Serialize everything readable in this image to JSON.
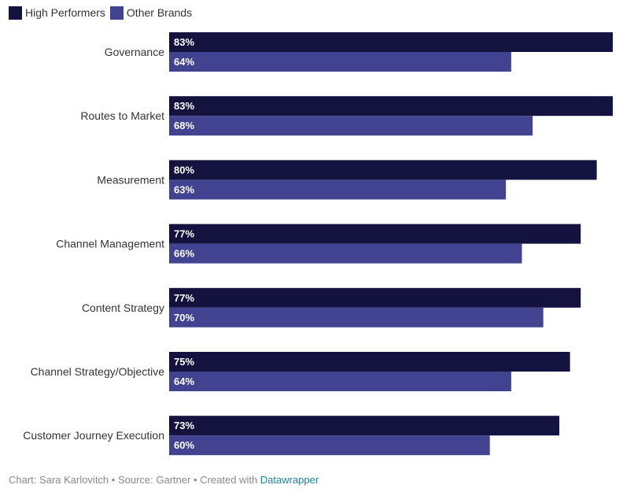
{
  "colors": {
    "high": "#14133f",
    "other": "#414391",
    "label_text": "#ffffff",
    "category_text": "#333333"
  },
  "chart_data": {
    "type": "bar",
    "orientation": "horizontal",
    "categories": [
      "Governance",
      "Routes to Market",
      "Measurement",
      "Channel Management",
      "Content Strategy",
      "Channel Strategy/Objective",
      "Customer Journey Execution"
    ],
    "series": [
      {
        "name": "High Performers",
        "values": [
          83,
          83,
          80,
          77,
          77,
          75,
          73
        ],
        "labels": [
          "83%",
          "83%",
          "80%",
          "77%",
          "77%",
          "75%",
          "73%"
        ]
      },
      {
        "name": "Other Brands",
        "values": [
          64,
          68,
          63,
          66,
          70,
          64,
          60
        ],
        "labels": [
          "64%",
          "68%",
          "63%",
          "66%",
          "70%",
          "64%",
          "60%"
        ]
      }
    ],
    "xlim": [
      0,
      83
    ],
    "legend": "top-left",
    "grid": false
  },
  "footer": {
    "prefix": "Chart: Sara Karlovitch • Source: Gartner • Created with ",
    "link": "Datawrapper"
  }
}
